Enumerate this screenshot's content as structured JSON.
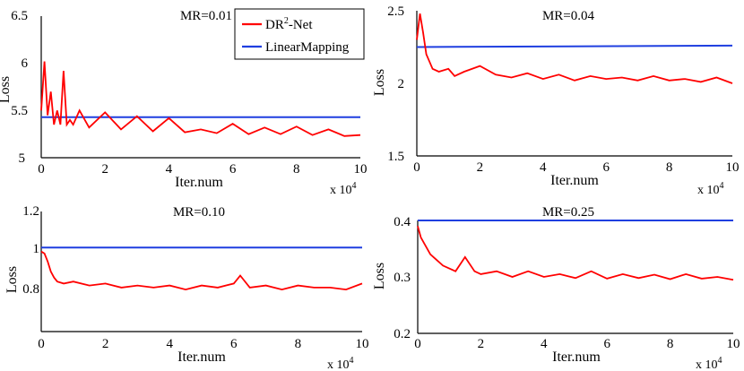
{
  "figure": {
    "colors": {
      "dr2net": "#ff0000",
      "linear": "#1f3fe0",
      "axis": "#000000"
    }
  },
  "chart_data": [
    {
      "type": "line",
      "title": "MR=0.01",
      "xlabel": "Iter.num",
      "ylabel": "Loss",
      "x_multiplier": "x 10",
      "x_multiplier_exp": "4",
      "xlim": [
        0,
        10
      ],
      "ylim": [
        5,
        6.5
      ],
      "xticks": [
        "0",
        "2",
        "4",
        "6",
        "8",
        "10"
      ],
      "yticks": [
        "5",
        "5.5",
        "6",
        "6.5"
      ],
      "legend": {
        "entries": [
          "DR",
          "-Net",
          "LinearMapping"
        ],
        "dr_sup": "2",
        "position": "top-right"
      },
      "series": [
        {
          "name": "DR2-Net",
          "color": "#ff0000",
          "x": [
            0,
            0.1,
            0.2,
            0.3,
            0.4,
            0.5,
            0.6,
            0.7,
            0.8,
            0.9,
            1,
            1.2,
            1.5,
            2,
            2.5,
            3,
            3.5,
            4,
            4.5,
            5,
            5.5,
            6,
            6.5,
            7,
            7.5,
            8,
            8.5,
            9,
            9.5,
            10
          ],
          "y": [
            5.5,
            6.02,
            5.45,
            5.7,
            5.35,
            5.5,
            5.35,
            5.92,
            5.35,
            5.4,
            5.35,
            5.5,
            5.32,
            5.48,
            5.3,
            5.44,
            5.28,
            5.42,
            5.27,
            5.3,
            5.26,
            5.36,
            5.25,
            5.32,
            5.25,
            5.33,
            5.24,
            5.3,
            5.23,
            5.24
          ]
        },
        {
          "name": "LinearMapping",
          "color": "#1f3fe0",
          "x": [
            0,
            10
          ],
          "y": [
            5.43,
            5.43
          ]
        }
      ]
    },
    {
      "type": "line",
      "title": "MR=0.04",
      "xlabel": "Iter.num",
      "ylabel": "Loss",
      "x_multiplier": "x 10",
      "x_multiplier_exp": "4",
      "xlim": [
        0,
        10
      ],
      "ylim": [
        1.5,
        2.5
      ],
      "xticks": [
        "0",
        "2",
        "4",
        "6",
        "8",
        "10"
      ],
      "yticks": [
        "1.5",
        "2",
        "2.5"
      ],
      "series": [
        {
          "name": "DR2-Net",
          "color": "#ff0000",
          "x": [
            0,
            0.1,
            0.2,
            0.3,
            0.4,
            0.5,
            0.7,
            1,
            1.2,
            1.5,
            2,
            2.5,
            3,
            3.5,
            4,
            4.5,
            5,
            5.5,
            6,
            6.5,
            7,
            7.5,
            8,
            8.5,
            9,
            9.5,
            10
          ],
          "y": [
            2.3,
            2.48,
            2.35,
            2.2,
            2.15,
            2.1,
            2.08,
            2.1,
            2.05,
            2.08,
            2.12,
            2.06,
            2.04,
            2.07,
            2.03,
            2.06,
            2.02,
            2.05,
            2.03,
            2.04,
            2.02,
            2.05,
            2.02,
            2.03,
            2.01,
            2.04,
            2.0
          ]
        },
        {
          "name": "LinearMapping",
          "color": "#1f3fe0",
          "x": [
            0,
            10
          ],
          "y": [
            2.25,
            2.26
          ]
        }
      ]
    },
    {
      "type": "line",
      "title": "MR=0.10",
      "xlabel": "Iter.num",
      "ylabel": "Loss",
      "x_multiplier": "x 10",
      "x_multiplier_exp": "4",
      "xlim": [
        0,
        10
      ],
      "ylim": [
        0.6,
        1.2
      ],
      "xticks": [
        "0",
        "2",
        "4",
        "6",
        "8",
        "10"
      ],
      "yticks": [
        "0.8",
        "1",
        "1.2"
      ],
      "series": [
        {
          "name": "DR2-Net",
          "color": "#ff0000",
          "x": [
            0,
            0.1,
            0.2,
            0.3,
            0.4,
            0.5,
            0.7,
            1,
            1.5,
            2,
            2.5,
            3,
            3.5,
            4,
            4.5,
            5,
            5.5,
            6,
            6.2,
            6.5,
            7,
            7.5,
            8,
            8.5,
            9,
            9.5,
            10
          ],
          "y": [
            1.0,
            0.99,
            0.95,
            0.9,
            0.87,
            0.85,
            0.84,
            0.85,
            0.83,
            0.84,
            0.82,
            0.83,
            0.82,
            0.83,
            0.81,
            0.83,
            0.82,
            0.84,
            0.88,
            0.82,
            0.83,
            0.81,
            0.83,
            0.82,
            0.82,
            0.81,
            0.84
          ]
        },
        {
          "name": "LinearMapping",
          "color": "#1f3fe0",
          "x": [
            0,
            10
          ],
          "y": [
            1.02,
            1.02
          ]
        }
      ]
    },
    {
      "type": "line",
      "title": "MR=0.25",
      "xlabel": "Iter.num",
      "ylabel": "Loss",
      "x_multiplier": "x 10",
      "x_multiplier_exp": "4",
      "xlim": [
        0,
        10
      ],
      "ylim": [
        0.2,
        0.4
      ],
      "xticks": [
        "0",
        "2",
        "4",
        "6",
        "8",
        "10"
      ],
      "yticks": [
        "0.2",
        "0.3",
        "0.4"
      ],
      "series": [
        {
          "name": "DR2-Net",
          "color": "#ff0000",
          "x": [
            0,
            0.1,
            0.2,
            0.4,
            0.6,
            0.8,
            1,
            1.2,
            1.5,
            1.8,
            2,
            2.5,
            3,
            3.5,
            4,
            4.5,
            5,
            5.5,
            6,
            6.5,
            7,
            7.5,
            8,
            8.5,
            9,
            9.5,
            10
          ],
          "y": [
            0.39,
            0.37,
            0.36,
            0.34,
            0.33,
            0.32,
            0.315,
            0.31,
            0.335,
            0.31,
            0.305,
            0.31,
            0.3,
            0.31,
            0.3,
            0.305,
            0.298,
            0.31,
            0.297,
            0.305,
            0.298,
            0.304,
            0.296,
            0.305,
            0.297,
            0.3,
            0.295
          ]
        },
        {
          "name": "LinearMapping",
          "color": "#1f3fe0",
          "x": [
            0,
            10
          ],
          "y": [
            0.4,
            0.4
          ]
        }
      ]
    }
  ]
}
